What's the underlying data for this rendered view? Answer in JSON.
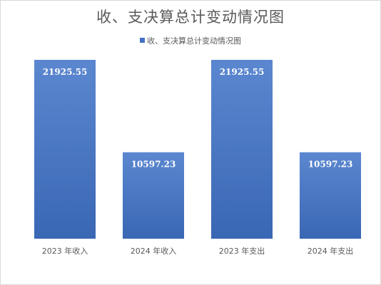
{
  "chart_data": {
    "type": "bar",
    "title": "收、支决算总计变动情况图",
    "legend_position": "top",
    "categories": [
      "2023 年收入",
      "2024 年收入",
      "2023 年支出",
      "2024 年支出"
    ],
    "series": [
      {
        "name": "收、支决算总计变动情况图",
        "values": [
          21925.55,
          10597.23,
          21925.55,
          10597.23
        ],
        "color": "#4472c4"
      }
    ],
    "data_labels": [
      "21925.55",
      "10597.23",
      "21925.55",
      "10597.23"
    ],
    "ylim": [
      0,
      25000
    ],
    "grid": false,
    "xlabel": "",
    "ylabel": ""
  }
}
